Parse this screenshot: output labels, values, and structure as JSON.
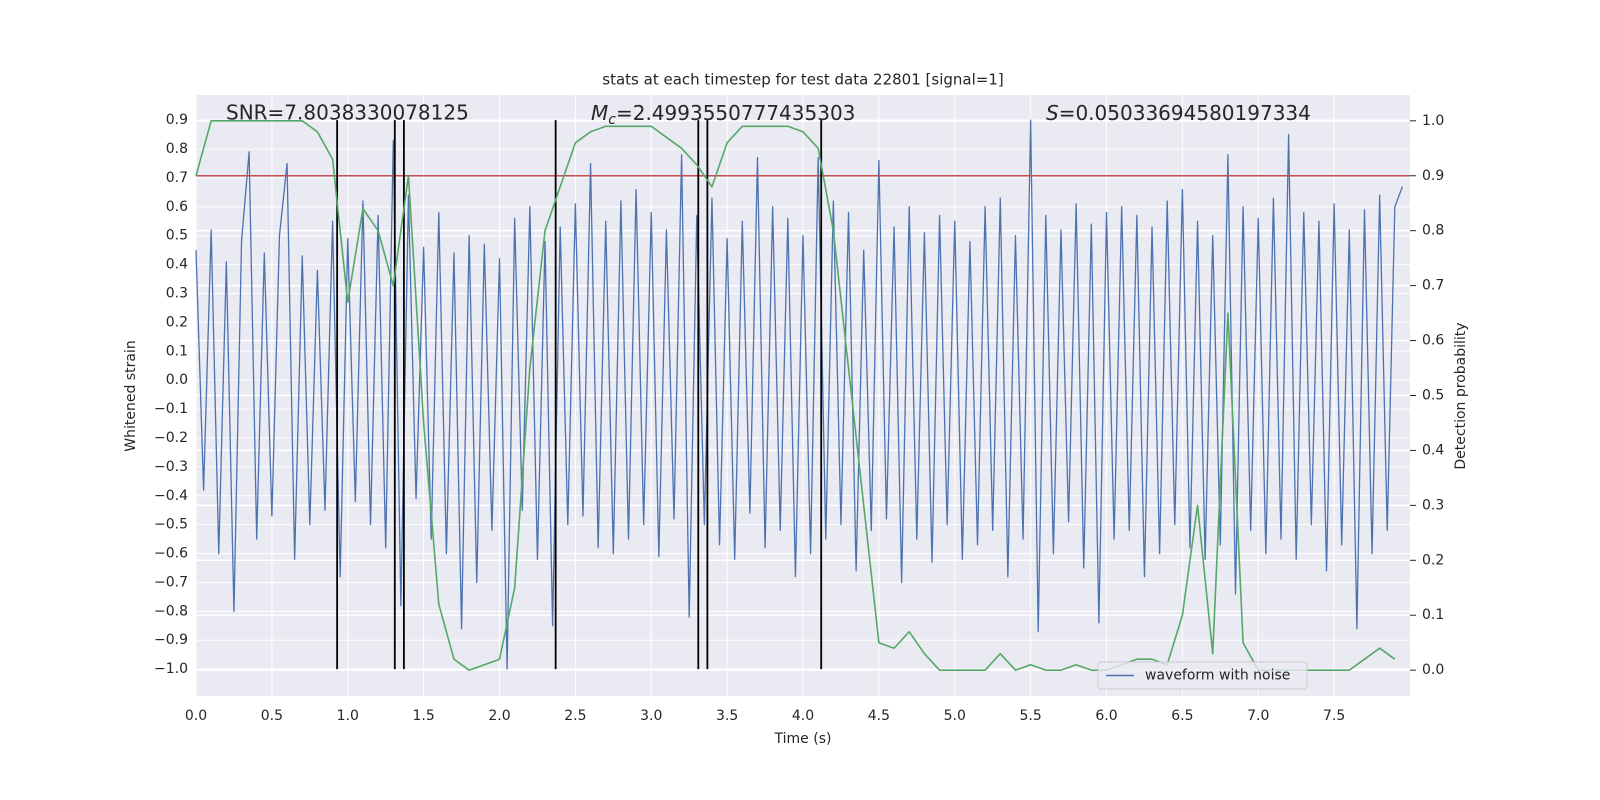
{
  "chart_data": {
    "type": "line",
    "title": "stats at each timestep for test data 22801 [signal=1]",
    "x_label": "Time (s)",
    "y_label": "Whitened strain",
    "y2_label": "Detection probability",
    "annotations": [
      {
        "text": "SNR=7.8038330078125"
      },
      {
        "symbol": "M",
        "subscript": "c",
        "text": "=2.4993550777435303"
      },
      {
        "symbol": "S",
        "text": "=0.05033694580197334"
      }
    ],
    "xlim": [
      0,
      8
    ],
    "xticks": [
      {
        "value": 0,
        "label": "0.0"
      },
      0.5,
      {
        "value": 1,
        "label": "1.0"
      },
      1.5,
      {
        "value": 2,
        "label": "2.0"
      },
      2.5,
      {
        "value": 3,
        "label": "3.0"
      },
      3.5,
      {
        "value": 4,
        "label": "4.0"
      },
      4.5,
      {
        "value": 5,
        "label": "5.0"
      },
      5.5,
      {
        "value": 6,
        "label": "6.0"
      },
      6.5,
      {
        "value": 7,
        "label": "7.0"
      },
      7.5
    ],
    "ylim": [
      -1.093,
      0.987
    ],
    "yticks": [
      {
        "value": -1,
        "label": "−1.0"
      },
      {
        "value": -0.9,
        "label": "−0.9"
      },
      {
        "value": -0.8,
        "label": "−0.8"
      },
      {
        "value": -0.7,
        "label": "−0.7"
      },
      {
        "value": -0.6,
        "label": "−0.6"
      },
      {
        "value": -0.5,
        "label": "−0.5"
      },
      {
        "value": -0.4,
        "label": "−0.4"
      },
      {
        "value": -0.3,
        "label": "−0.3"
      },
      {
        "value": -0.2,
        "label": "−0.2"
      },
      {
        "value": -0.1,
        "label": "−0.1"
      },
      {
        "value": 0,
        "label": "0.0"
      },
      0.1,
      0.2,
      0.3,
      0.4,
      0.5,
      0.6,
      0.7,
      0.8,
      0.9
    ],
    "y2lim": [
      -0.047,
      1.047
    ],
    "y2ticks": [
      {
        "value": 0,
        "label": "0.0"
      },
      0.1,
      0.2,
      0.3,
      0.4,
      0.5,
      0.6,
      0.7,
      0.8,
      0.9,
      {
        "value": 1,
        "label": "1.0"
      }
    ],
    "grid": true,
    "legend": "lower right",
    "series": [
      {
        "name": "waveform with noise",
        "color": "#4c72b0",
        "x": [
          0,
          0.05,
          0.1,
          0.15,
          0.2,
          0.25,
          0.3,
          0.35,
          0.4,
          0.45,
          0.5,
          0.55,
          0.6,
          0.65,
          0.7,
          0.75,
          0.8,
          0.85,
          0.9,
          0.95,
          1,
          1.05,
          1.1,
          1.15,
          1.2,
          1.25,
          1.3,
          1.35,
          1.4,
          1.45,
          1.5,
          1.55,
          1.6,
          1.65,
          1.7,
          1.75,
          1.8,
          1.85,
          1.9,
          1.95,
          2,
          2.05,
          2.1,
          2.15,
          2.2,
          2.25,
          2.3,
          2.35,
          2.4,
          2.45,
          2.5,
          2.55,
          2.6,
          2.65,
          2.7,
          2.75,
          2.8,
          2.85,
          2.9,
          2.95,
          3,
          3.05,
          3.1,
          3.15,
          3.2,
          3.25,
          3.3,
          3.35,
          3.4,
          3.45,
          3.5,
          3.55,
          3.6,
          3.65,
          3.7,
          3.75,
          3.8,
          3.85,
          3.9,
          3.95,
          4,
          4.05,
          4.1,
          4.15,
          4.2,
          4.25,
          4.3,
          4.35,
          4.4,
          4.45,
          4.5,
          4.55,
          4.6,
          4.65,
          4.7,
          4.75,
          4.8,
          4.85,
          4.9,
          4.95,
          5,
          5.05,
          5.1,
          5.15,
          5.2,
          5.25,
          5.3,
          5.35,
          5.4,
          5.45,
          5.5,
          5.55,
          5.6,
          5.65,
          5.7,
          5.75,
          5.8,
          5.85,
          5.9,
          5.95,
          6,
          6.05,
          6.1,
          6.15,
          6.2,
          6.25,
          6.3,
          6.35,
          6.4,
          6.45,
          6.5,
          6.55,
          6.6,
          6.65,
          6.7,
          6.75,
          6.8,
          6.85,
          6.9,
          6.95,
          7,
          7.05,
          7.1,
          7.15,
          7.2,
          7.25,
          7.3,
          7.35,
          7.4,
          7.45,
          7.5,
          7.55,
          7.6,
          7.65,
          7.7,
          7.75,
          7.8,
          7.85,
          7.9,
          7.95
        ],
        "values": [
          0.45,
          -0.38,
          0.52,
          -0.6,
          0.41,
          -0.8,
          0.48,
          0.79,
          -0.55,
          0.44,
          -0.47,
          0.5,
          0.75,
          -0.62,
          0.43,
          -0.5,
          0.38,
          -0.45,
          0.55,
          -0.68,
          0.49,
          -0.42,
          0.62,
          -0.5,
          0.57,
          -0.58,
          0.83,
          -0.78,
          0.64,
          -0.41,
          0.46,
          -0.55,
          0.58,
          -0.6,
          0.44,
          -0.86,
          0.5,
          -0.7,
          0.47,
          -0.52,
          0.42,
          -1.0,
          0.56,
          -0.45,
          0.6,
          -0.62,
          0.48,
          -0.85,
          0.53,
          -0.5,
          0.61,
          -0.47,
          0.75,
          -0.58,
          0.55,
          -0.6,
          0.62,
          -0.55,
          0.66,
          -0.5,
          0.58,
          -0.61,
          0.52,
          -0.48,
          0.78,
          -0.82,
          0.57,
          -0.5,
          0.63,
          -0.57,
          0.49,
          -0.62,
          0.55,
          -0.46,
          0.77,
          -0.58,
          0.6,
          -0.52,
          0.56,
          -0.68,
          0.5,
          -0.6,
          0.77,
          -0.55,
          0.62,
          -0.5,
          0.58,
          -0.66,
          0.45,
          -0.52,
          0.76,
          -0.48,
          0.53,
          -0.7,
          0.6,
          -0.55,
          0.51,
          -0.63,
          0.57,
          -0.5,
          0.55,
          -0.62,
          0.48,
          -0.57,
          0.6,
          -0.52,
          0.63,
          -0.68,
          0.5,
          -0.55,
          0.9,
          -0.87,
          0.57,
          -0.6,
          0.52,
          -0.49,
          0.61,
          -0.65,
          0.54,
          -0.84,
          0.58,
          -0.55,
          0.6,
          -0.52,
          0.57,
          -0.68,
          0.53,
          -0.6,
          0.62,
          -0.5,
          0.66,
          -0.58,
          0.55,
          -0.62,
          0.5,
          -0.57,
          0.78,
          -0.74,
          0.6,
          -0.52,
          0.56,
          -0.6,
          0.63,
          -0.55,
          0.85,
          -0.62,
          0.58,
          -0.5,
          0.55,
          -0.66,
          0.61,
          -0.57,
          0.52,
          -0.86,
          0.59,
          -0.6,
          0.64,
          -0.52,
          0.6,
          0.67
        ]
      },
      {
        "color": "#55a868",
        "axis": "y2",
        "x": [
          0,
          0.1,
          0.2,
          0.3,
          0.4,
          0.5,
          0.6,
          0.7,
          0.8,
          0.9,
          1,
          1.1,
          1.2,
          1.3,
          1.4,
          1.5,
          1.6,
          1.7,
          1.8,
          1.9,
          2,
          2.1,
          2.2,
          2.3,
          2.4,
          2.5,
          2.6,
          2.7,
          2.8,
          2.9,
          3,
          3.1,
          3.2,
          3.3,
          3.4,
          3.5,
          3.6,
          3.7,
          3.8,
          3.9,
          4,
          4.1,
          4.2,
          4.3,
          4.4,
          4.5,
          4.6,
          4.7,
          4.8,
          4.9,
          5,
          5.1,
          5.2,
          5.3,
          5.4,
          5.5,
          5.6,
          5.7,
          5.8,
          5.9,
          6,
          6.1,
          6.2,
          6.3,
          6.4,
          6.5,
          6.6,
          6.7,
          6.8,
          6.9,
          7,
          7.1,
          7.2,
          7.3,
          7.4,
          7.5,
          7.6,
          7.7,
          7.8,
          7.9
        ],
        "values": [
          0.9,
          1.0,
          1.0,
          1.0,
          1.0,
          1.0,
          1.0,
          1.0,
          0.98,
          0.93,
          0.67,
          0.84,
          0.8,
          0.7,
          0.9,
          0.45,
          0.12,
          0.02,
          0.0,
          0.01,
          0.02,
          0.15,
          0.55,
          0.8,
          0.88,
          0.96,
          0.98,
          0.99,
          0.99,
          0.99,
          0.99,
          0.97,
          0.95,
          0.92,
          0.88,
          0.96,
          0.99,
          0.99,
          0.99,
          0.99,
          0.98,
          0.95,
          0.8,
          0.55,
          0.3,
          0.05,
          0.04,
          0.07,
          0.03,
          0.0,
          0.0,
          0.0,
          0.0,
          0.03,
          0.0,
          0.01,
          0.0,
          0.0,
          0.01,
          0.0,
          0.0,
          0.01,
          0.02,
          0.02,
          0.01,
          0.1,
          0.3,
          0.03,
          0.65,
          0.05,
          0.0,
          0.0,
          0.0,
          0.0,
          0.0,
          0.0,
          0.0,
          0.02,
          0.04,
          0.02
        ]
      }
    ],
    "hline": {
      "value": 0.9,
      "axis": "y2",
      "color": "#c44e52"
    },
    "vlines": {
      "x": [
        0.93,
        1.31,
        1.37,
        2.37,
        3.31,
        3.37,
        4.12
      ],
      "range": [
        -1.0,
        0.9
      ],
      "color": "#000000"
    }
  }
}
